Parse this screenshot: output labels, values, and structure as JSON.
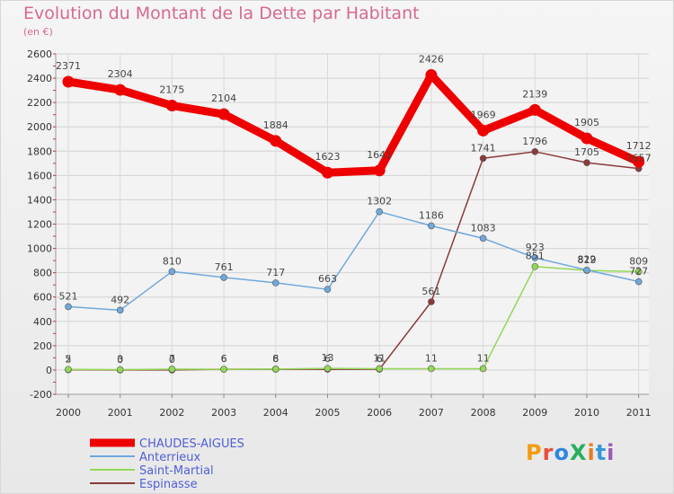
{
  "title": "Evolution du Montant de la Dette par Habitant",
  "subtitle": "(en €)",
  "logo": {
    "text": "ProXiti",
    "colors": [
      "#f39c12",
      "#e74c3c",
      "#2e86de",
      "#27ae60",
      "#e67e22",
      "#3498db",
      "#9b59b6"
    ]
  },
  "chart_data": {
    "type": "line",
    "x": [
      "2000",
      "2001",
      "2002",
      "2003",
      "2004",
      "2005",
      "2006",
      "2007",
      "2008",
      "2009",
      "2010",
      "2011"
    ],
    "ylim": [
      -200,
      2600
    ],
    "yticks": [
      -200,
      0,
      200,
      400,
      600,
      800,
      1000,
      1200,
      1400,
      1600,
      1800,
      2000,
      2200,
      2400,
      2600
    ],
    "grid": true,
    "legend_position": "bottom-left",
    "series": [
      {
        "name": "CHAUDES-AIGUES",
        "color": "#ee0000",
        "values": [
          2371,
          2304,
          2175,
          2104,
          1884,
          1623,
          1641,
          2426,
          1969,
          2139,
          1905,
          1712
        ],
        "labels": [
          "2371",
          "2304",
          "2175",
          "2104",
          "1884",
          "1623",
          "1641",
          "2426",
          "1969",
          "2139",
          "1905",
          "1712"
        ]
      },
      {
        "name": "Anterrieux",
        "color": "#6fa8dc",
        "values": [
          521,
          492,
          810,
          761,
          717,
          663,
          1302,
          1186,
          1083,
          923,
          822,
          727
        ],
        "labels": [
          "521",
          "492",
          "810",
          "761",
          "717",
          "663",
          "1302",
          "1186",
          "1083",
          "923",
          "822",
          "727"
        ]
      },
      {
        "name": "Saint-Martial",
        "color": "#93d857",
        "values": [
          5,
          3,
          7,
          6,
          8,
          13,
          11,
          11,
          11,
          851,
          819,
          809
        ],
        "labels": [
          "5",
          "3",
          "7",
          "6",
          "8",
          "13",
          "11",
          "11",
          "11",
          "851",
          "819",
          "809"
        ]
      },
      {
        "name": "Espinasse",
        "color": "#8b3a3a",
        "values": [
          2,
          0,
          0,
          6,
          6,
          6,
          6,
          561,
          1741,
          1796,
          1705,
          1657
        ],
        "labels": [
          "2",
          "0",
          "0",
          "6",
          "6",
          "6",
          "6",
          "561",
          "1741",
          "1796",
          "1705",
          "1657"
        ]
      }
    ]
  }
}
